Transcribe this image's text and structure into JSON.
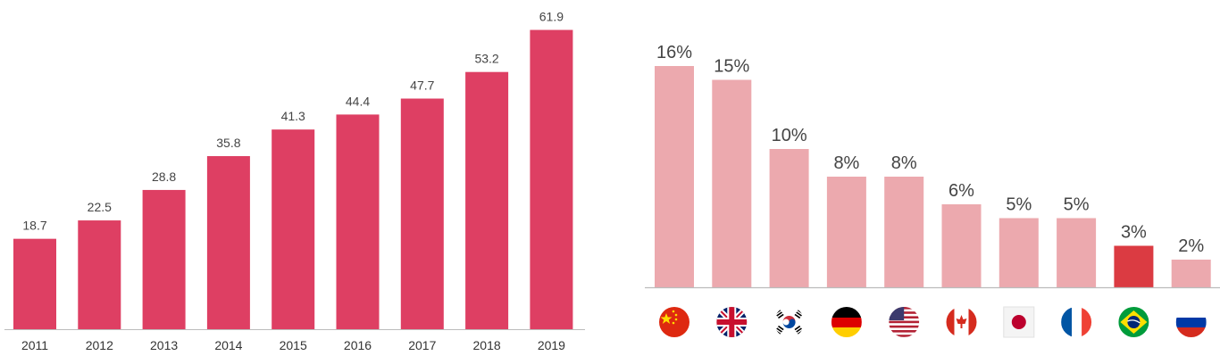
{
  "chart_data": [
    {
      "type": "bar",
      "title": "",
      "xlabel": "",
      "ylabel": "",
      "categories": [
        "2011",
        "2012",
        "2013",
        "2014",
        "2015",
        "2016",
        "2017",
        "2018",
        "2019"
      ],
      "values": [
        18.7,
        22.5,
        28.8,
        35.8,
        41.3,
        44.4,
        47.7,
        53.2,
        61.9
      ],
      "value_labels": [
        "18.7",
        "22.5",
        "28.8",
        "35.8",
        "41.3",
        "44.4",
        "47.7",
        "53.2",
        "61.9"
      ],
      "ylim": [
        0,
        62
      ],
      "grid": false,
      "colors": {
        "bar": "#de3f63",
        "baseline": "#bbbbbb"
      }
    },
    {
      "type": "bar",
      "title": "",
      "xlabel": "",
      "ylabel": "",
      "categories": [
        "China",
        "United Kingdom",
        "South Korea",
        "Germany",
        "United States",
        "Canada",
        "Japan",
        "France",
        "Brazil",
        "Russia"
      ],
      "category_icons": [
        "flag-china-icon",
        "flag-uk-icon",
        "flag-south-korea-icon",
        "flag-germany-icon",
        "flag-usa-icon",
        "flag-canada-icon",
        "flag-japan-icon",
        "flag-france-icon",
        "flag-brazil-icon",
        "flag-russia-icon"
      ],
      "values": [
        16,
        15,
        10,
        8,
        8,
        6,
        5,
        5,
        3,
        2
      ],
      "value_labels": [
        "16%",
        "15%",
        "10%",
        "8%",
        "8%",
        "6%",
        "5%",
        "5%",
        "3%",
        "2%"
      ],
      "ylim": [
        0,
        16
      ],
      "grid": false,
      "highlight_index": 8,
      "colors": {
        "bar": "#eca9ae",
        "highlight": "#db3b42",
        "baseline": "#bbbbbb"
      }
    }
  ]
}
